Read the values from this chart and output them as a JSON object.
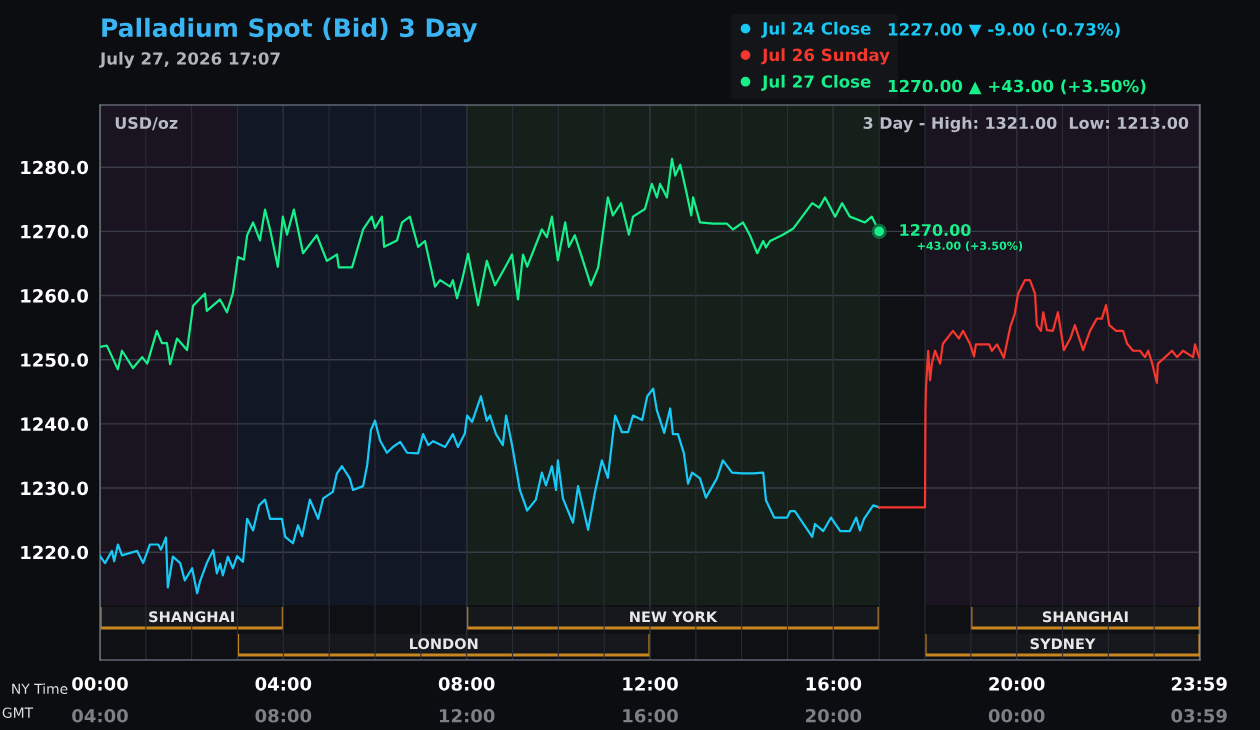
{
  "chart_data": {
    "type": "line",
    "title": "Palladium Spot (Bid) 3 Day",
    "subtitle": "July 27, 2026 17:07",
    "xlabel": "NY Time",
    "x2label": "GMT",
    "xlim": [
      0,
      24
    ],
    "xticks": [
      {
        "value": 0,
        "label": "00:00"
      },
      {
        "value": 4,
        "label": "04:00"
      },
      {
        "value": 8,
        "label": "08:00"
      },
      {
        "value": 12,
        "label": "12:00"
      },
      {
        "value": 16,
        "label": "16:00"
      },
      {
        "value": 20,
        "label": "20:00"
      },
      {
        "value": 23.983,
        "label": "23:59"
      }
    ],
    "x2lim": [
      "2026-07-27T04:00",
      "2026-07-28T04:00"
    ],
    "x2ticks": [
      {
        "value": "2026-07-27T04:00",
        "label": "04:00"
      },
      {
        "value": "2026-07-27T08:00",
        "label": "08:00"
      },
      {
        "value": "2026-07-27T12:00",
        "label": "12:00"
      },
      {
        "value": "2026-07-27T16:00",
        "label": "16:00"
      },
      {
        "value": "2026-07-27T20:00",
        "label": "20:00"
      },
      {
        "value": "2026-07-28T00:00",
        "label": "00:00"
      },
      {
        "value": "2026-07-28T03:59",
        "label": "03:59"
      }
    ],
    "ylim": [
      1203.2,
      1289.7
    ],
    "yticks": [
      {
        "value": 1220,
        "label": "1220.0"
      },
      {
        "value": 1230,
        "label": "1230.0"
      },
      {
        "value": 1240,
        "label": "1240.0"
      },
      {
        "value": 1250,
        "label": "1250.0"
      },
      {
        "value": 1260,
        "label": "1260.0"
      },
      {
        "value": 1270,
        "label": "1270.0"
      },
      {
        "value": 1280,
        "label": "1280.0"
      }
    ],
    "grid": true,
    "legend": "top right",
    "line_style": "solid",
    "series": [
      {
        "name": "Jul 24 Close",
        "color": "#18c8f5",
        "x": [
          0.0,
          0.11,
          0.26,
          0.31,
          0.39,
          0.48,
          0.81,
          0.94,
          1.09,
          1.27,
          1.33,
          1.44,
          1.48,
          1.59,
          1.75,
          1.85,
          2.01,
          2.12,
          2.18,
          2.33,
          2.47,
          2.55,
          2.62,
          2.68,
          2.79,
          2.9,
          2.99,
          3.12,
          3.21,
          3.34,
          3.47,
          3.6,
          3.71,
          3.97,
          4.04,
          4.21,
          4.32,
          4.41,
          4.58,
          4.76,
          4.87,
          5.08,
          5.17,
          5.28,
          5.45,
          5.52,
          5.74,
          5.83,
          5.91,
          6.0,
          6.11,
          6.26,
          6.39,
          6.55,
          6.7,
          6.94,
          7.05,
          7.16,
          7.27,
          7.53,
          7.7,
          7.81,
          7.96,
          8.01,
          8.12,
          8.31,
          8.44,
          8.51,
          8.64,
          8.79,
          8.86,
          8.99,
          9.16,
          9.32,
          9.51,
          9.64,
          9.73,
          9.86,
          9.95,
          9.99,
          10.1,
          10.19,
          10.32,
          10.43,
          10.65,
          10.8,
          10.95,
          11.08,
          11.24,
          11.39,
          11.52,
          11.63,
          11.83,
          11.94,
          12.07,
          12.15,
          12.31,
          12.44,
          12.5,
          12.61,
          12.74,
          12.83,
          12.92,
          13.09,
          13.22,
          13.46,
          13.59,
          13.79,
          14.01,
          14.25,
          14.47,
          14.53,
          14.71,
          14.99,
          15.06,
          15.16,
          15.54,
          15.6,
          15.78,
          15.95,
          16.15,
          16.36,
          16.5,
          16.58,
          16.67,
          16.87,
          17.0
        ],
        "values": [
          1219.4,
          1218.3,
          1220.2,
          1218.6,
          1221.2,
          1219.5,
          1220.2,
          1218.3,
          1221.2,
          1221.2,
          1220.4,
          1222.3,
          1214.5,
          1219.3,
          1218.3,
          1215.6,
          1217.5,
          1213.6,
          1215.4,
          1218.3,
          1220.3,
          1216.7,
          1218.2,
          1216.4,
          1219.3,
          1217.5,
          1219.4,
          1218.5,
          1225.2,
          1223.4,
          1227.3,
          1228.2,
          1225.2,
          1225.2,
          1222.4,
          1221.4,
          1224.2,
          1222.5,
          1228.2,
          1225.2,
          1228.4,
          1229.4,
          1232.3,
          1233.4,
          1231.5,
          1229.7,
          1230.3,
          1233.6,
          1239.0,
          1240.5,
          1237.4,
          1235.5,
          1236.4,
          1237.2,
          1235.5,
          1235.4,
          1238.4,
          1236.7,
          1237.3,
          1236.4,
          1238.4,
          1236.4,
          1238.5,
          1241.3,
          1240.3,
          1244.3,
          1240.5,
          1241.3,
          1238.4,
          1236.7,
          1241.3,
          1236.7,
          1229.7,
          1226.5,
          1228.2,
          1232.4,
          1230.4,
          1233.4,
          1229.7,
          1234.3,
          1228.4,
          1226.8,
          1224.6,
          1230.3,
          1223.5,
          1229.4,
          1234.3,
          1231.6,
          1241.3,
          1238.7,
          1238.7,
          1241.3,
          1240.6,
          1244.3,
          1245.5,
          1242.1,
          1238.6,
          1242.4,
          1238.4,
          1238.4,
          1235.4,
          1230.7,
          1232.4,
          1231.5,
          1228.5,
          1231.5,
          1234.3,
          1232.4,
          1232.3,
          1232.3,
          1232.4,
          1228.1,
          1225.4,
          1225.4,
          1226.4,
          1226.4,
          1222.4,
          1224.4,
          1223.3,
          1225.4,
          1223.3,
          1223.3,
          1225.4,
          1223.4,
          1225.2,
          1227.3,
          1227.0
        ]
      },
      {
        "name": "Jul 26 Sunday",
        "color": "#f5372d",
        "x": [
          17.0,
          18.0,
          18.01,
          18.02,
          18.07,
          18.11,
          18.15,
          18.22,
          18.33,
          18.39,
          18.48,
          18.61,
          18.74,
          18.83,
          18.98,
          19.07,
          19.11,
          19.4,
          19.46,
          19.57,
          19.72,
          19.86,
          19.96,
          20.03,
          20.18,
          20.29,
          20.4,
          20.44,
          20.53,
          20.58,
          20.66,
          20.79,
          20.9,
          21.03,
          21.17,
          21.27,
          21.45,
          21.6,
          21.75,
          21.86,
          21.95,
          22.02,
          22.17,
          22.32,
          22.41,
          22.54,
          22.69,
          22.8,
          22.87,
          22.95,
          23.06,
          23.08,
          23.24,
          23.39,
          23.5,
          23.63,
          23.85,
          23.89,
          23.98
        ],
        "values": [
          1227.0,
          1227.0,
          1242.1,
          1245.5,
          1251.4,
          1246.8,
          1249.4,
          1251.4,
          1249.4,
          1252.5,
          1253.3,
          1254.5,
          1253.3,
          1254.5,
          1252.5,
          1250.5,
          1252.4,
          1252.4,
          1251.4,
          1252.4,
          1250.3,
          1255.1,
          1257.2,
          1260.3,
          1262.4,
          1262.4,
          1260.3,
          1255.4,
          1254.5,
          1257.4,
          1254.6,
          1254.5,
          1257.4,
          1251.5,
          1253.3,
          1255.4,
          1251.5,
          1254.5,
          1256.4,
          1256.4,
          1258.5,
          1255.4,
          1254.5,
          1254.5,
          1252.5,
          1251.4,
          1251.4,
          1250.4,
          1251.4,
          1249.6,
          1246.4,
          1249.4,
          1250.4,
          1251.4,
          1250.4,
          1251.4,
          1250.4,
          1252.4,
          1250.4
        ]
      },
      {
        "name": "Jul 27 Close",
        "color": "#17f08a",
        "x": [
          0.0,
          0.15,
          0.39,
          0.48,
          0.72,
          0.92,
          1.03,
          1.24,
          1.35,
          1.46,
          1.53,
          1.68,
          1.9,
          2.03,
          2.29,
          2.33,
          2.62,
          2.77,
          2.9,
          3.01,
          3.14,
          3.21,
          3.34,
          3.49,
          3.6,
          3.71,
          3.88,
          3.99,
          4.08,
          4.23,
          4.43,
          4.73,
          4.95,
          5.17,
          5.21,
          5.5,
          5.74,
          5.93,
          6.0,
          6.15,
          6.2,
          6.48,
          6.59,
          6.76,
          6.94,
          7.09,
          7.31,
          7.42,
          7.64,
          7.7,
          7.79,
          7.9,
          8.03,
          8.25,
          8.44,
          8.62,
          8.84,
          8.99,
          9.12,
          9.23,
          9.32,
          9.64,
          9.75,
          9.86,
          9.99,
          10.15,
          10.23,
          10.36,
          10.71,
          10.87,
          11.08,
          11.19,
          11.37,
          11.54,
          11.63,
          11.89,
          12.04,
          12.15,
          12.22,
          12.37,
          12.48,
          12.55,
          12.66,
          12.81,
          12.9,
          12.94,
          13.09,
          13.38,
          13.68,
          13.81,
          14.03,
          14.18,
          14.34,
          14.47,
          14.53,
          14.62,
          14.88,
          15.12,
          15.32,
          15.54,
          15.69,
          15.82,
          16.04,
          16.19,
          16.36,
          16.69,
          16.84,
          17.0
        ],
        "values": [
          1252.0,
          1252.2,
          1248.5,
          1251.4,
          1248.7,
          1250.4,
          1249.4,
          1254.5,
          1252.6,
          1252.6,
          1249.3,
          1253.3,
          1251.5,
          1258.4,
          1260.3,
          1257.6,
          1259.4,
          1257.4,
          1260.4,
          1266.0,
          1265.6,
          1269.4,
          1271.4,
          1268.6,
          1273.4,
          1270.3,
          1264.5,
          1272.3,
          1269.5,
          1273.4,
          1266.6,
          1269.4,
          1265.4,
          1266.4,
          1264.4,
          1264.4,
          1270.3,
          1272.3,
          1270.5,
          1272.3,
          1267.6,
          1268.6,
          1271.4,
          1272.3,
          1267.6,
          1268.5,
          1261.4,
          1262.4,
          1261.4,
          1262.4,
          1259.6,
          1262.4,
          1266.5,
          1258.5,
          1265.4,
          1261.6,
          1264.4,
          1266.4,
          1259.4,
          1266.4,
          1264.5,
          1270.3,
          1269.1,
          1272.3,
          1265.5,
          1271.4,
          1267.6,
          1269.4,
          1261.6,
          1264.4,
          1275.3,
          1272.5,
          1274.4,
          1269.5,
          1272.3,
          1273.5,
          1277.4,
          1275.3,
          1277.4,
          1275.3,
          1281.3,
          1278.7,
          1280.4,
          1275.6,
          1272.5,
          1275.3,
          1271.4,
          1271.2,
          1271.2,
          1270.3,
          1271.4,
          1269.4,
          1266.6,
          1268.5,
          1267.5,
          1268.5,
          1269.4,
          1270.4,
          1272.3,
          1274.4,
          1273.7,
          1275.3,
          1272.3,
          1274.4,
          1272.3,
          1271.4,
          1272.3,
          1270.0
        ]
      }
    ],
    "bands": [
      {
        "axis": "x",
        "from": 0,
        "to": 3,
        "color": "#1a1320"
      },
      {
        "axis": "x",
        "from": 3,
        "to": 8,
        "color": "#111725"
      },
      {
        "axis": "x",
        "from": 8,
        "to": 17,
        "color": "#16201a"
      },
      {
        "axis": "x",
        "from": 18,
        "to": 24,
        "color": "#1a1320"
      },
      {
        "axis": "x",
        "from": 0,
        "to": 4,
        "label": "SHANGHAI",
        "color": "#16181d"
      },
      {
        "axis": "x",
        "from": 3,
        "to": 12,
        "label": "LONDON",
        "color": "#16181d"
      },
      {
        "axis": "x",
        "from": 8,
        "to": 17,
        "label": "NEW YORK",
        "color": "#16181d"
      },
      {
        "axis": "x",
        "from": 19,
        "to": 24,
        "label": "SHANGHAI",
        "color": "#16181d"
      },
      {
        "axis": "x",
        "from": 18,
        "to": 24,
        "label": "SYDNEY",
        "color": "#16181d"
      }
    ],
    "annotations": [
      "USD/oz",
      "3 Day - High: 1321.00  Low: 1213.00",
      "1227.00 ▼ -9.00 (-0.73%)",
      "1270.00 ▲ +43.00 (+3.50%)",
      "+43.00 (+3.50%)",
      {
        "text": "1270.00",
        "x": 17,
        "y": 1270
      }
    ]
  }
}
